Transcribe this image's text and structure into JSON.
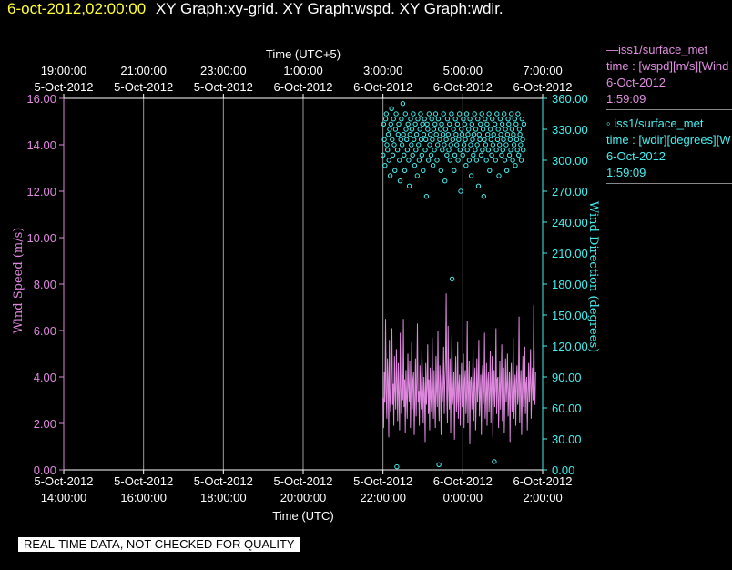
{
  "title": {
    "datetime": "6-oct-2012,02:00:00",
    "graphs": "XY Graph:xy-grid.  XY Graph:wspd.  XY Graph:wdir."
  },
  "top_axis": {
    "label": "Time (UTC+5)",
    "ticks": [
      {
        "time": "19:00:00",
        "date": "5-Oct-2012"
      },
      {
        "time": "21:00:00",
        "date": "5-Oct-2012"
      },
      {
        "time": "23:00:00",
        "date": "5-Oct-2012"
      },
      {
        "time": "1:00:00",
        "date": "6-Oct-2012"
      },
      {
        "time": "3:00:00",
        "date": "6-Oct-2012"
      },
      {
        "time": "5:00:00",
        "date": "6-Oct-2012"
      },
      {
        "time": "7:00:00",
        "date": "6-Oct-2012"
      }
    ]
  },
  "bottom_axis": {
    "label": "Time (UTC)",
    "ticks": [
      {
        "date": "5-Oct-2012",
        "time": "14:00:00"
      },
      {
        "date": "5-Oct-2012",
        "time": "16:00:00"
      },
      {
        "date": "5-Oct-2012",
        "time": "18:00:00"
      },
      {
        "date": "5-Oct-2012",
        "time": "20:00:00"
      },
      {
        "date": "5-Oct-2012",
        "time": "22:00:00"
      },
      {
        "date": "6-Oct-2012",
        "time": "0:00:00"
      },
      {
        "date": "6-Oct-2012",
        "time": "2:00:00"
      }
    ]
  },
  "left_axis": {
    "label": "Wind Speed (m/s)",
    "ticks": [
      "0.00",
      "2.00",
      "4.00",
      "6.00",
      "8.00",
      "10.00",
      "12.00",
      "14.00",
      "16.00"
    ],
    "color": "#dd88dd"
  },
  "right_axis": {
    "label": "Wind Direction (degrees)",
    "ticks": [
      "0.00",
      "30.00",
      "60.00",
      "90.00",
      "120.00",
      "150.00",
      "180.00",
      "210.00",
      "240.00",
      "270.00",
      "300.00",
      "330.00",
      "360.00"
    ],
    "color": "#44eeee"
  },
  "legend": {
    "speed": {
      "line1": "—iss1/surface_met",
      "line2": "time : [wspd][m/s][Wind",
      "line3": "6-Oct-2012",
      "line4": "1:59:09"
    },
    "direction": {
      "line1": "◦ iss1/surface_met",
      "line2": "time : [wdir][degrees][W",
      "line3": "6-Oct-2012",
      "line4": "1:59:09"
    }
  },
  "disclaimer": "REAL-TIME DATA, NOT CHECKED FOR QUALITY",
  "chart_data": {
    "type": "line",
    "x_range_utc_hours": [
      14,
      26
    ],
    "data_start_utc_hours": 22.0,
    "data_end_utc_hours": 25.985,
    "ylim_left": [
      0,
      16
    ],
    "ylim_right": [
      0,
      360
    ],
    "grid": "vertical",
    "series": [
      {
        "name": "iss1/surface_met wspd",
        "axis": "left",
        "style": "line",
        "color": "#dd88dd",
        "t_start": 22.0,
        "t_step": 0.016,
        "values": [
          3.1,
          1.8,
          4.2,
          2.9,
          6.5,
          3.3,
          2.2,
          4.8,
          3.9,
          1.4,
          5.6,
          3.0,
          2.5,
          4.4,
          6.1,
          2.8,
          3.7,
          1.9,
          4.9,
          3.4,
          2.6,
          5.2,
          3.8,
          2.1,
          4.6,
          3.2,
          1.7,
          5.9,
          3.5,
          2.4,
          4.1,
          3.0,
          6.5,
          2.7,
          3.9,
          1.6,
          4.3,
          3.1,
          2.2,
          5.0,
          3.6,
          2.9,
          4.7,
          1.8,
          3.4,
          5.5,
          2.6,
          3.9,
          4.2,
          1.5,
          3.0,
          4.8,
          2.3,
          3.7,
          6.3,
          2.9,
          3.4,
          1.9,
          4.5,
          3.2,
          2.6,
          5.1,
          3.8,
          2.0,
          4.0,
          3.3,
          1.2,
          4.6,
          2.8,
          3.5,
          5.4,
          2.4,
          3.9,
          1.7,
          4.4,
          3.1,
          2.5,
          5.7,
          3.6,
          2.2,
          4.3,
          3.0,
          1.8,
          4.9,
          3.4,
          2.7,
          6.0,
          3.2,
          2.1,
          4.5,
          3.7,
          1.5,
          4.1,
          2.9,
          3.6,
          5.3,
          2.4,
          3.8,
          4.7,
          7.6,
          3.1,
          2.0,
          6.2,
          3.5,
          2.6,
          4.8,
          1.6,
          3.9,
          5.8,
          2.8,
          3.3,
          4.2,
          1.3,
          3.7,
          4.9,
          2.5,
          3.0,
          5.5,
          2.2,
          3.6,
          4.1,
          1.9,
          3.4,
          4.6,
          2.7,
          3.2,
          5.0,
          1.8,
          3.9,
          4.3,
          2.4,
          3.1,
          6.4,
          2.0,
          3.5,
          4.7,
          1.1,
          3.8,
          4.0,
          2.6,
          3.3,
          5.2,
          2.1,
          3.7,
          4.4,
          1.7,
          3.0,
          4.8,
          2.9,
          3.6,
          5.6,
          2.3,
          3.2,
          4.1,
          1.5,
          3.9,
          4.5,
          2.8,
          3.4,
          5.9,
          2.2,
          3.1,
          4.6,
          1.9,
          3.8,
          4.2,
          2.5,
          3.3,
          5.1,
          2.0,
          3.6,
          4.9,
          1.4,
          3.0,
          4.3,
          2.7,
          3.5,
          6.1,
          2.4,
          3.9,
          4.0,
          1.8,
          3.2,
          4.7,
          2.6,
          3.7,
          5.4,
          2.1,
          3.4,
          4.4,
          1.6,
          3.1,
          4.8,
          2.9,
          3.6,
          5.0,
          2.3,
          3.3,
          4.2,
          1.2,
          3.8,
          4.6,
          2.5,
          3.0,
          5.7,
          2.2,
          3.5,
          4.1,
          1.9,
          3.9,
          4.5,
          2.8,
          3.2,
          6.6,
          2.0,
          3.6,
          4.3,
          1.5,
          3.4,
          4.9,
          2.7,
          3.1,
          5.3,
          2.4,
          3.7,
          4.0,
          1.7,
          3.3,
          4.6,
          2.9,
          3.8,
          5.2,
          2.2,
          3.5,
          4.4,
          3.0,
          7.1,
          3.6,
          2.8,
          4.2
        ]
      },
      {
        "name": "iss1/surface_met wdir",
        "axis": "right",
        "style": "scatter",
        "color": "#44eeee",
        "t_start": 22.0,
        "t_step": 0.0165,
        "values": [
          305,
          335,
          320,
          295,
          340,
          345,
          315,
          310,
          325,
          300,
          330,
          285,
          335,
          350,
          320,
          305,
          340,
          315,
          290,
          330,
          345,
          3,
          310,
          325,
          335,
          300,
          280,
          320,
          340,
          315,
          355,
          325,
          305,
          290,
          345,
          330,
          320,
          310,
          335,
          300,
          275,
          325,
          340,
          315,
          330,
          305,
          345,
          320,
          295,
          335,
          310,
          325,
          285,
          340,
          315,
          300,
          330,
          345,
          320,
          305,
          335,
          290,
          325,
          340,
          310,
          320,
          265,
          335,
          330,
          300,
          345,
          315,
          325,
          305,
          340,
          320,
          295,
          330,
          310,
          335,
          345,
          325,
          300,
          315,
          340,
          5,
          320,
          330,
          290,
          335,
          310,
          325,
          345,
          315,
          280,
          330,
          320,
          305,
          340,
          325,
          310,
          335,
          300,
          315,
          345,
          185,
          320,
          330,
          290,
          305,
          340,
          325,
          315,
          335,
          300,
          320,
          345,
          310,
          270,
          330,
          325,
          305,
          340,
          315,
          335,
          320,
          295,
          345,
          310,
          325,
          330,
          300,
          340,
          315,
          285,
          335,
          320,
          305,
          325,
          345,
          310,
          330,
          300,
          315,
          340,
          275,
          325,
          320,
          335,
          305,
          345,
          310,
          330,
          265,
          320,
          340,
          315,
          300,
          335,
          325,
          310,
          345,
          290,
          330,
          320,
          305,
          340,
          315,
          325,
          8,
          335,
          300,
          310,
          345,
          320,
          330,
          285,
          315,
          340,
          325,
          305,
          335,
          310,
          320,
          345,
          300,
          330,
          315,
          290,
          325,
          340,
          335,
          305,
          320,
          310,
          345,
          330,
          300,
          325,
          315,
          340,
          295,
          335,
          320,
          310,
          345,
          305,
          330,
          325,
          315,
          300,
          340,
          320,
          310,
          335
        ]
      }
    ]
  }
}
